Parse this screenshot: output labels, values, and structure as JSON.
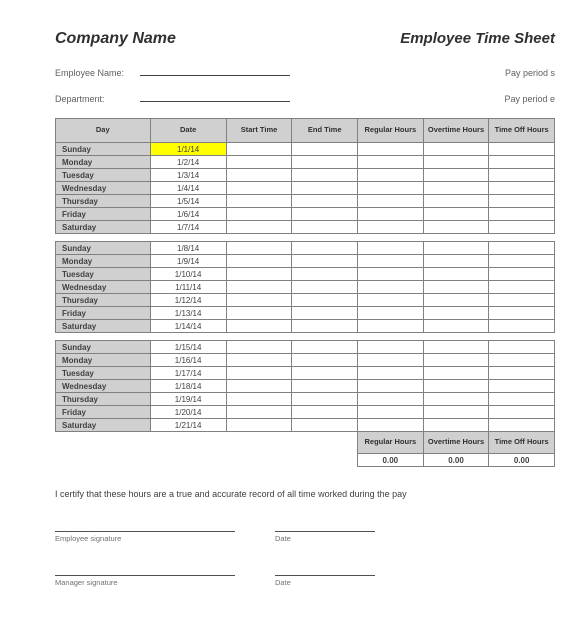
{
  "header": {
    "company": "Company Name",
    "title": "Employee Time Sheet"
  },
  "fields": {
    "employee_name_label": "Employee Name:",
    "department_label": "Department:",
    "pay_period_start": "Pay period s",
    "pay_period_end": "Pay period e"
  },
  "columns": {
    "day": "Day",
    "date": "Date",
    "start": "Start Time",
    "end": "End Time",
    "regular": "Regular Hours",
    "overtime": "Overtime Hours",
    "timeoff": "Time Off Hours"
  },
  "weeks": [
    [
      {
        "day": "Sunday",
        "date": "1/1/14",
        "highlight": true
      },
      {
        "day": "Monday",
        "date": "1/2/14"
      },
      {
        "day": "Tuesday",
        "date": "1/3/14"
      },
      {
        "day": "Wednesday",
        "date": "1/4/14"
      },
      {
        "day": "Thursday",
        "date": "1/5/14"
      },
      {
        "day": "Friday",
        "date": "1/6/14"
      },
      {
        "day": "Saturday",
        "date": "1/7/14"
      }
    ],
    [
      {
        "day": "Sunday",
        "date": "1/8/14"
      },
      {
        "day": "Monday",
        "date": "1/9/14"
      },
      {
        "day": "Tuesday",
        "date": "1/10/14"
      },
      {
        "day": "Wednesday",
        "date": "1/11/14"
      },
      {
        "day": "Thursday",
        "date": "1/12/14"
      },
      {
        "day": "Friday",
        "date": "1/13/14"
      },
      {
        "day": "Saturday",
        "date": "1/14/14"
      }
    ],
    [
      {
        "day": "Sunday",
        "date": "1/15/14"
      },
      {
        "day": "Monday",
        "date": "1/16/14"
      },
      {
        "day": "Tuesday",
        "date": "1/17/14"
      },
      {
        "day": "Wednesday",
        "date": "1/18/14"
      },
      {
        "day": "Thursday",
        "date": "1/19/14"
      },
      {
        "day": "Friday",
        "date": "1/20/14"
      },
      {
        "day": "Saturday",
        "date": "1/21/14"
      }
    ]
  ],
  "totals": {
    "regular_label": "Regular Hours",
    "overtime_label": "Overtime Hours",
    "timeoff_label": "Time Off Hours",
    "regular": "0.00",
    "overtime": "0.00",
    "timeoff": "0.00"
  },
  "certify": "I certify that these hours are a true and accurate record of all time worked during the pay",
  "signatures": {
    "employee": "Employee signature",
    "manager": "Manager signature",
    "date": "Date"
  },
  "style": {
    "header_bg": "#d0d0d0",
    "highlight_bg": "#ffff00",
    "border_color": "#808080",
    "text_color": "#404040"
  }
}
